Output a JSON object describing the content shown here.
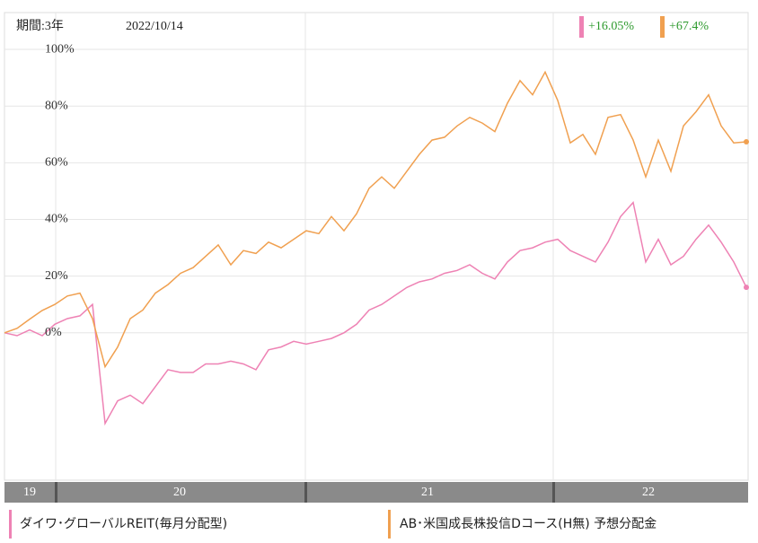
{
  "chart_data": {
    "type": "line",
    "period": "期間:3年",
    "date": "2022/10/14",
    "x_labels": [
      "19",
      "20",
      "21",
      "22"
    ],
    "ylim": [
      -52,
      113
    ],
    "yticks": [
      {
        "value": 100,
        "label": "100%"
      },
      {
        "value": 80,
        "label": "80%"
      },
      {
        "value": 60,
        "label": "60%"
      },
      {
        "value": 40,
        "label": "40%"
      },
      {
        "value": 20,
        "label": "20%"
      },
      {
        "value": 0,
        "label": "0%"
      }
    ],
    "grid": true,
    "series": [
      {
        "name": "ダイワ･グローバルREIT(毎月分配型)",
        "color": "#ee82b4",
        "change_label": "+16.05%",
        "values": [
          0,
          -1,
          1,
          -1,
          3,
          5,
          6,
          10,
          -32,
          -24,
          -22,
          -25,
          -19,
          -13,
          -14,
          -14,
          -11,
          -11,
          -10,
          -11,
          -13,
          -6,
          -5,
          -3,
          -4,
          -3,
          -2,
          0,
          3,
          8,
          10,
          13,
          16,
          18,
          19,
          21,
          22,
          24,
          21,
          19,
          25,
          29,
          30,
          32,
          33,
          29,
          27,
          25,
          32,
          41,
          46,
          25,
          33,
          24,
          27,
          33,
          38,
          32,
          25,
          16.05
        ]
      },
      {
        "name": "AB･米国成長株投信Dコース(H無) 予想分配金",
        "color": "#f0a050",
        "change_label": "+67.4%",
        "values": [
          0,
          1.6,
          4.8,
          7.9,
          10,
          13,
          14,
          5,
          -12,
          -5,
          5,
          8,
          14,
          17,
          21,
          23,
          27,
          31,
          24,
          29,
          28,
          32,
          30,
          33,
          36,
          35,
          41,
          36,
          42,
          51,
          55,
          51,
          57,
          63,
          68,
          69,
          73,
          76,
          74,
          71,
          81,
          89,
          84,
          92,
          82,
          67,
          70,
          63,
          76,
          77,
          68,
          55,
          68,
          57,
          73,
          78,
          84,
          73,
          67,
          67.4
        ]
      }
    ]
  }
}
